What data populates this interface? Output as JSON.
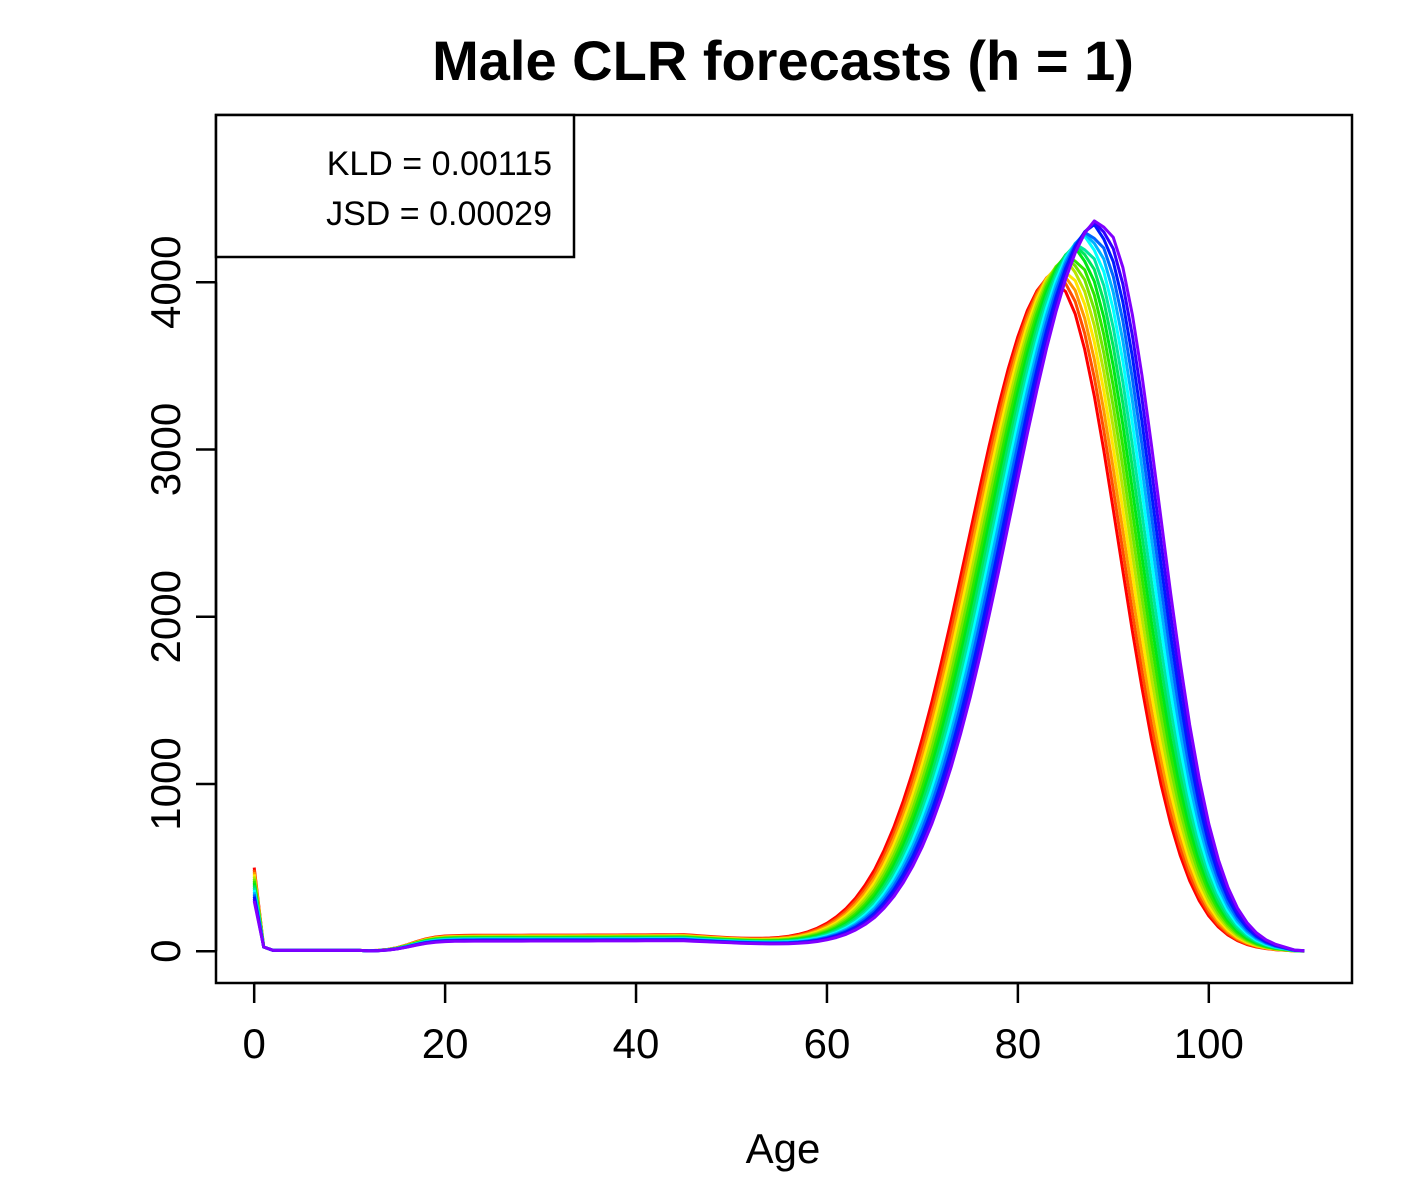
{
  "chart_data": {
    "type": "line",
    "title": "Male CLR forecasts (h = 1)",
    "xlabel": "Age",
    "ylabel": "",
    "xlim": [
      -4,
      115
    ],
    "ylim": [
      -190,
      5000
    ],
    "xticks": [
      0,
      20,
      40,
      60,
      80,
      100
    ],
    "xtick_labels": [
      "0",
      "20",
      "40",
      "60",
      "80",
      "100"
    ],
    "yticks": [
      0,
      1000,
      2000,
      3000,
      4000
    ],
    "ytick_labels": [
      "0",
      "1000",
      "2000",
      "3000",
      "4000"
    ],
    "legend": {
      "position": "top-left",
      "lines": [
        "KLD = 0.00115",
        "JSD = 0.00029"
      ]
    },
    "grid": false,
    "color_scale": "rainbow (red to violet)",
    "series_count": 16,
    "series_note": "Each series is one year's forecast of the male age distribution; peak age drifts from about 84 (red) to about 89 (violet).",
    "ages": [
      0,
      1,
      2,
      3,
      4,
      5,
      6,
      7,
      8,
      9,
      10,
      11,
      12,
      13,
      14,
      15,
      16,
      17,
      18,
      19,
      20,
      21,
      22,
      23,
      24,
      25,
      26,
      27,
      28,
      29,
      30,
      31,
      32,
      33,
      34,
      35,
      36,
      37,
      38,
      39,
      40,
      41,
      42,
      43,
      44,
      45,
      46,
      47,
      48,
      49,
      50,
      51,
      52,
      53,
      54,
      55,
      56,
      57,
      58,
      59,
      60,
      61,
      62,
      63,
      64,
      65,
      66,
      67,
      68,
      69,
      70,
      71,
      72,
      73,
      74,
      75,
      76,
      77,
      78,
      79,
      80,
      81,
      82,
      83,
      84,
      85,
      86,
      87,
      88,
      89,
      90,
      91,
      92,
      93,
      94,
      95,
      96,
      97,
      98,
      99,
      100,
      101,
      102,
      103,
      104,
      105,
      106,
      107,
      108,
      109,
      110
    ],
    "first_series": {
      "name": "earliest (red)",
      "age0": 500,
      "young_adult_plateau": 95,
      "peak_age": 84,
      "peak_value": 3990
    },
    "last_series": {
      "name": "latest (violet)",
      "age0": 300,
      "young_adult_plateau": 60,
      "peak_age": 89,
      "peak_value": 4330
    }
  }
}
